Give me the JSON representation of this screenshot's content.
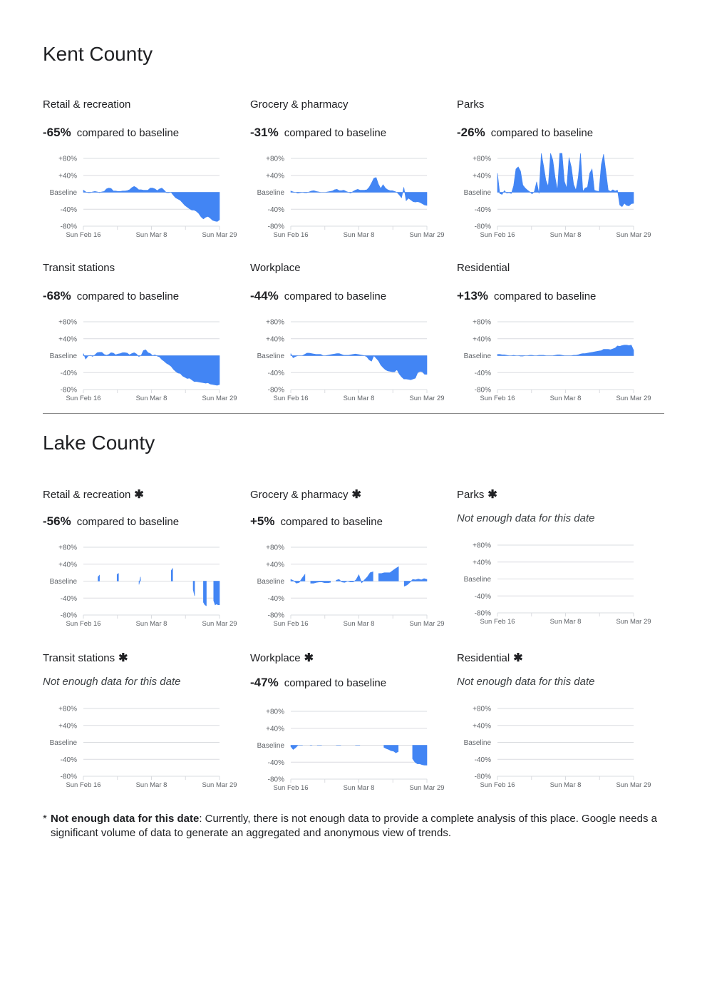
{
  "counties": [
    {
      "name": "Kent County",
      "panels": [
        {
          "title": "Retail & recreation",
          "star": false,
          "value": "-65%",
          "compare": "compared to baseline",
          "nodata": "",
          "series": [
            5,
            1,
            -1,
            -1,
            1,
            2,
            1,
            -1,
            1,
            2,
            8,
            10,
            9,
            3,
            3,
            2,
            2,
            3,
            3,
            4,
            6,
            11,
            14,
            11,
            6,
            6,
            5,
            5,
            5,
            10,
            10,
            8,
            4,
            8,
            10,
            5,
            -1,
            -1,
            0,
            -7,
            -13,
            -16,
            -19,
            -25,
            -31,
            -35,
            -39,
            -42,
            -42,
            -45,
            -50,
            -58,
            -63,
            -59,
            -57,
            -61,
            -66,
            -68,
            -69,
            -65
          ]
        },
        {
          "title": "Grocery & pharmacy",
          "star": false,
          "value": "-31%",
          "compare": "compared to baseline",
          "nodata": "",
          "series": [
            3,
            1,
            0,
            -2,
            -1,
            0,
            -1,
            -1,
            1,
            3,
            4,
            2,
            1,
            0,
            0,
            0,
            1,
            2,
            3,
            6,
            7,
            4,
            4,
            5,
            2,
            0,
            -2,
            2,
            5,
            7,
            5,
            5,
            5,
            6,
            12,
            22,
            33,
            35,
            19,
            9,
            18,
            10,
            6,
            4,
            4,
            2,
            0,
            -6,
            -13,
            12,
            -20,
            -14,
            -18,
            -22,
            -23,
            -22,
            -24,
            -27,
            -30,
            -31
          ]
        },
        {
          "title": "Parks",
          "star": false,
          "value": "-26%",
          "compare": "compared to baseline",
          "nodata": "",
          "series": [
            45,
            -3,
            -5,
            4,
            -2,
            -1,
            -3,
            15,
            55,
            60,
            50,
            17,
            10,
            5,
            1,
            -4,
            2,
            25,
            -3,
            132,
            62,
            28,
            14,
            92,
            76,
            35,
            5,
            118,
            108,
            26,
            10,
            82,
            60,
            19,
            5,
            35,
            96,
            2,
            10,
            12,
            45,
            55,
            5,
            3,
            2,
            65,
            90,
            48,
            5,
            2,
            6,
            3,
            5,
            -30,
            -34,
            -26,
            -31,
            -32,
            -27,
            -26
          ]
        },
        {
          "title": "Transit stations",
          "star": false,
          "value": "-68%",
          "compare": "compared to baseline",
          "nodata": "",
          "series": [
            5,
            -8,
            -1,
            1,
            -2,
            2,
            7,
            8,
            8,
            3,
            1,
            3,
            7,
            6,
            2,
            4,
            5,
            7,
            7,
            6,
            2,
            5,
            7,
            4,
            -2,
            0,
            12,
            14,
            7,
            5,
            0,
            2,
            -1,
            -3,
            -9,
            -13,
            -18,
            -21,
            -25,
            -32,
            -37,
            -41,
            -42,
            -48,
            -51,
            -54,
            -53,
            -57,
            -61,
            -61,
            -62,
            -63,
            -64,
            -65,
            -64,
            -67,
            -68,
            -69,
            -70,
            -68
          ]
        },
        {
          "title": "Workplace",
          "star": false,
          "value": "-44%",
          "compare": "compared to baseline",
          "nodata": "",
          "series": [
            5,
            -5,
            -2,
            0,
            0,
            0,
            3,
            6,
            6,
            5,
            4,
            3,
            3,
            3,
            0,
            0,
            1,
            2,
            3,
            4,
            5,
            5,
            3,
            1,
            1,
            1,
            2,
            3,
            4,
            3,
            2,
            1,
            0,
            -3,
            -10,
            -13,
            0,
            -6,
            -12,
            -22,
            -28,
            -33,
            -36,
            -37,
            -38,
            -38,
            -33,
            -43,
            -50,
            -55,
            -55,
            -56,
            -57,
            -55,
            -53,
            -40,
            -37,
            -38,
            -44,
            -44
          ]
        },
        {
          "title": "Residential",
          "star": false,
          "value": "+13%",
          "compare": "compared to baseline",
          "nodata": "",
          "series": [
            3,
            3,
            2,
            2,
            1,
            0,
            0,
            1,
            0,
            0,
            -1,
            -1,
            0,
            0,
            1,
            1,
            0,
            0,
            1,
            1,
            1,
            0,
            0,
            0,
            0,
            1,
            2,
            2,
            1,
            0,
            0,
            0,
            0,
            1,
            1,
            2,
            4,
            5,
            5,
            6,
            7,
            8,
            9,
            10,
            11,
            12,
            15,
            15,
            15,
            14,
            16,
            18,
            23,
            22,
            24,
            25,
            25,
            24,
            25,
            13
          ]
        }
      ]
    },
    {
      "name": "Lake County",
      "panels": [
        {
          "title": "Retail & recreation",
          "star": true,
          "value": "-56%",
          "compare": "compared to baseline",
          "nodata": "",
          "series": [
            null,
            null,
            null,
            null,
            null,
            null,
            null,
            null,
            null,
            null,
            10,
            14,
            null,
            null,
            null,
            null,
            null,
            null,
            null,
            null,
            null,
            null,
            null,
            16,
            18,
            null,
            null,
            null,
            null,
            null,
            null,
            null,
            null,
            null,
            null,
            null,
            null,
            null,
            -8,
            10,
            null,
            null,
            null,
            null,
            null,
            null,
            null,
            null,
            null,
            null,
            null,
            null,
            null,
            null,
            null,
            null,
            null,
            null,
            null,
            null,
            25,
            30,
            null,
            null,
            null,
            null,
            null,
            null,
            null,
            null,
            null,
            null,
            null,
            null,
            null,
            -20,
            -35,
            null,
            null,
            null,
            null,
            null,
            -50,
            -56,
            -58,
            null,
            null,
            null,
            null,
            -46,
            -56,
            -54,
            -56,
            -56
          ]
        },
        {
          "title": "Grocery & pharmacy",
          "star": true,
          "value": "+5%",
          "compare": "compared to baseline",
          "nodata": "",
          "series": [
            4,
            1,
            -5,
            -3,
            7,
            16,
            null,
            -5,
            -5,
            -3,
            -2,
            -2,
            -4,
            -4,
            -3,
            null,
            2,
            4,
            -2,
            -3,
            0,
            -2,
            -2,
            3,
            15,
            -4,
            3,
            10,
            20,
            22,
            null,
            18,
            18,
            20,
            20,
            20,
            25,
            30,
            34,
            null,
            -12,
            -9,
            -3,
            4,
            3,
            5,
            3,
            6,
            4
          ]
        },
        {
          "title": "Parks",
          "star": true,
          "value": "",
          "compare": "",
          "nodata": "Not enough data for this date",
          "series": []
        },
        {
          "title": "Transit stations",
          "star": true,
          "value": "",
          "compare": "",
          "nodata": "Not enough data for this date",
          "series": []
        },
        {
          "title": "Workplace",
          "star": true,
          "value": "-47%",
          "compare": "compared to baseline",
          "nodata": "",
          "series": [
            -3,
            -10,
            -6,
            0,
            0,
            0,
            null,
            null,
            0,
            0,
            null,
            0,
            0,
            0,
            null,
            null,
            null,
            null,
            null,
            0,
            0,
            0,
            null,
            null,
            null,
            null,
            null,
            0,
            0,
            0,
            null,
            null,
            null,
            null,
            null,
            null,
            null,
            null,
            null,
            -5,
            -8,
            -10,
            -13,
            -14,
            -18,
            -15,
            null,
            null,
            null,
            null,
            null,
            -32,
            -40,
            -44,
            -44,
            -46,
            -47,
            -47
          ]
        },
        {
          "title": "Residential",
          "star": true,
          "value": "",
          "compare": "",
          "nodata": "Not enough data for this date",
          "series": []
        }
      ]
    }
  ],
  "axis": {
    "y_labels": [
      "+80%",
      "+40%",
      "Baseline",
      "-40%",
      "-80%"
    ],
    "y_values": [
      80,
      40,
      0,
      -40,
      -80
    ],
    "x_labels": [
      "Sun Feb 16",
      "Sun Mar 8",
      "Sun Mar 29"
    ]
  },
  "colors": {
    "fill": "#4285f4",
    "grid": "#dadce0",
    "text": "#202124",
    "axis_text": "#5f6368"
  },
  "star_glyph": "✱",
  "footnote": {
    "marker": "*",
    "bold": "Not enough data for this date",
    "text": ": Currently, there is not enough data to provide a complete analysis of this place. Google needs a significant volume of data to generate an aggregated and anonymous view of trends."
  }
}
